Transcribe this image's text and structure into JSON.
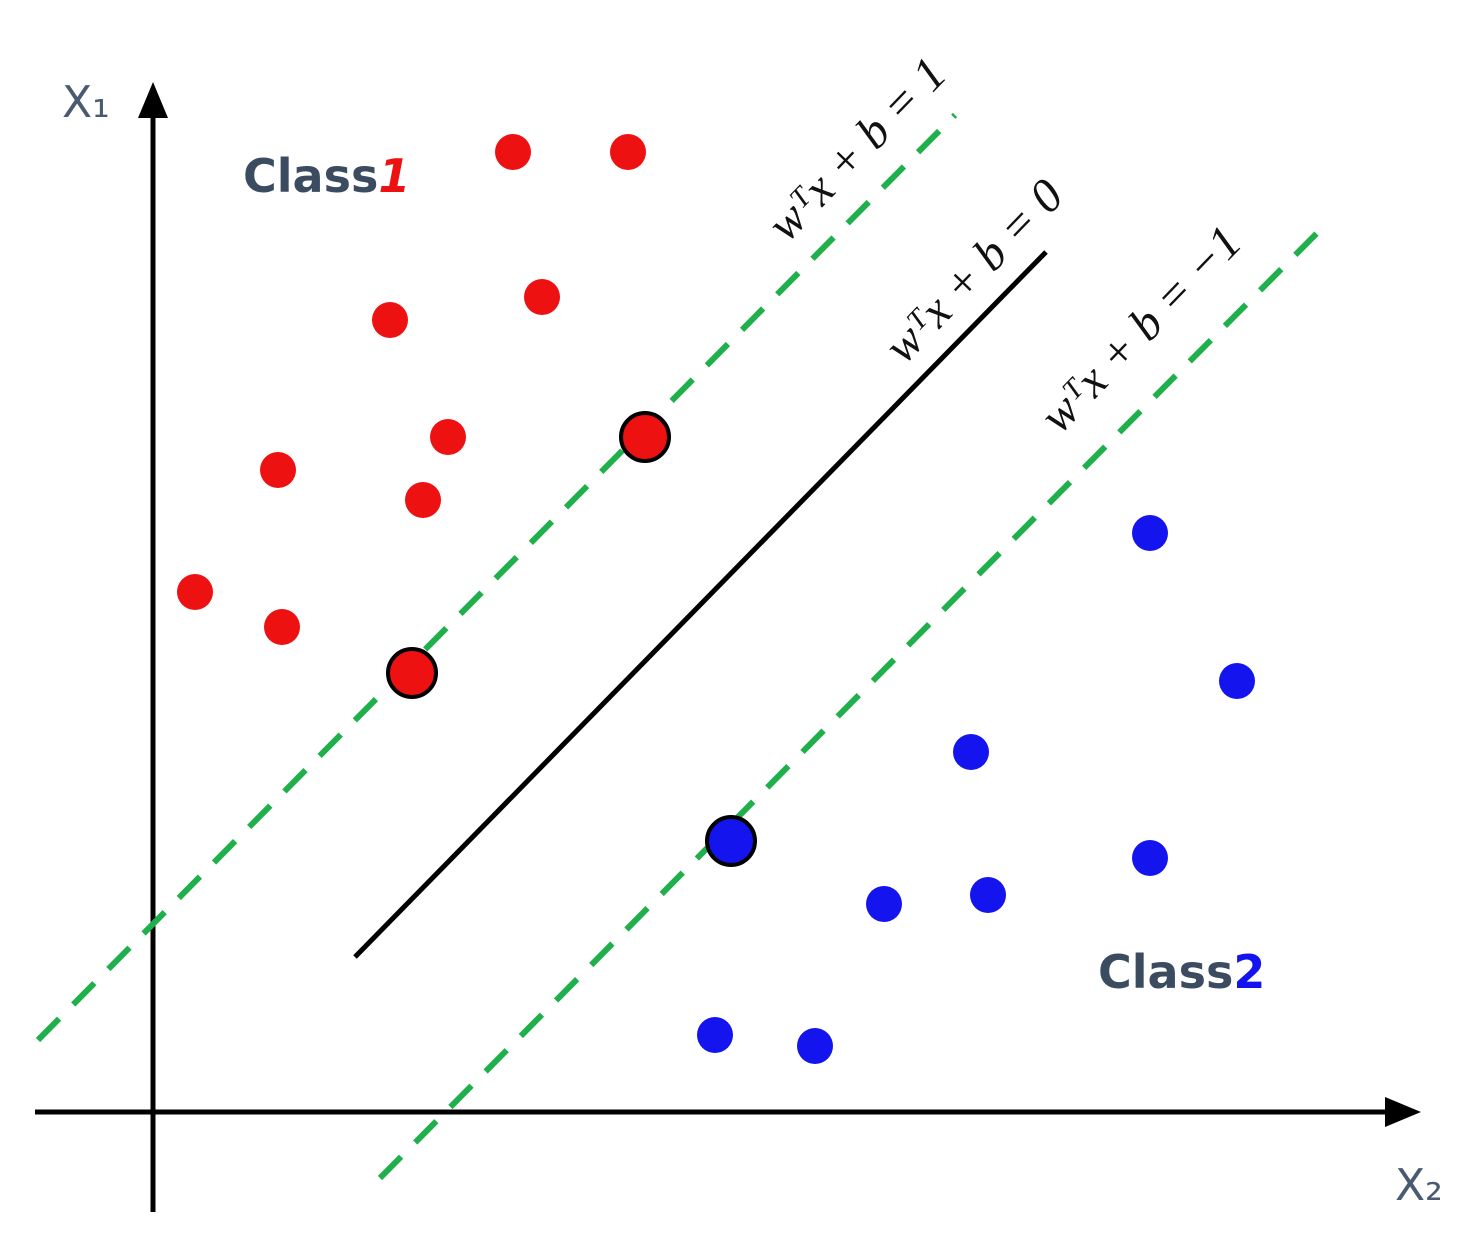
{
  "axes": {
    "vertical_label": "X₁",
    "horizontal_label": "X₂"
  },
  "classes": [
    {
      "word": "Class",
      "number": "1"
    },
    {
      "word": "Class",
      "number": "2"
    }
  ],
  "equations": {
    "upper_margin": "wᵀx + b = 1",
    "hyperplane": "wᵀx + b = 0",
    "lower_margin": "wᵀx + b = −1"
  }
}
